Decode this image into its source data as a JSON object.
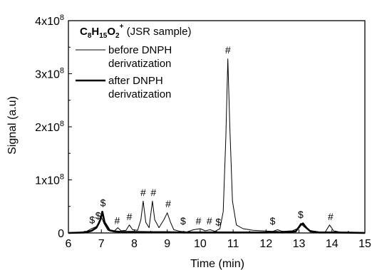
{
  "chart_data": {
    "type": "line",
    "xlabel": "Time (min)",
    "ylabel": "Signal (a.u)",
    "xlim": [
      6,
      15
    ],
    "ylim": [
      0,
      400000000
    ],
    "x_ticks": [
      "6",
      "7",
      "8",
      "9",
      "10",
      "11",
      "12",
      "13",
      "14",
      "15"
    ],
    "y_ticks": [
      {
        "value": 0,
        "mantissa": "0",
        "exponent": ""
      },
      {
        "value": 100000000,
        "mantissa": "1x10",
        "exponent": "8"
      },
      {
        "value": 200000000,
        "mantissa": "2x10",
        "exponent": "8"
      },
      {
        "value": 300000000,
        "mantissa": "3x10",
        "exponent": "8"
      },
      {
        "value": 400000000,
        "mantissa": "4x10",
        "exponent": "8"
      }
    ],
    "legend": {
      "placement": "top-left",
      "title": {
        "formula": [
          "C",
          "8",
          "H",
          "15",
          "O",
          "2",
          "+"
        ],
        "note": " (JSR sample)"
      },
      "entries": [
        {
          "line1": "before DNPH",
          "line2": "derivatization"
        },
        {
          "line1": "after DNPH",
          "line2": "derivatization"
        }
      ]
    },
    "series": [
      {
        "name": "before DNPH derivatization",
        "points": [
          [
            6.0,
            0
          ],
          [
            6.3,
            1000000
          ],
          [
            6.55,
            3000000
          ],
          [
            6.7,
            8000000
          ],
          [
            6.85,
            12000000
          ],
          [
            6.95,
            22000000
          ],
          [
            7.0,
            30000000
          ],
          [
            7.08,
            18000000
          ],
          [
            7.2,
            5000000
          ],
          [
            7.4,
            4000000
          ],
          [
            7.5,
            10000000
          ],
          [
            7.6,
            4000000
          ],
          [
            7.75,
            5000000
          ],
          [
            7.85,
            15000000
          ],
          [
            7.95,
            6000000
          ],
          [
            8.1,
            5000000
          ],
          [
            8.2,
            25000000
          ],
          [
            8.27,
            60000000
          ],
          [
            8.35,
            20000000
          ],
          [
            8.45,
            10000000
          ],
          [
            8.55,
            60000000
          ],
          [
            8.62,
            25000000
          ],
          [
            8.75,
            10000000
          ],
          [
            8.9,
            25000000
          ],
          [
            9.0,
            38000000
          ],
          [
            9.1,
            20000000
          ],
          [
            9.2,
            6000000
          ],
          [
            9.4,
            3000000
          ],
          [
            9.6,
            2000000
          ],
          [
            9.8,
            6000000
          ],
          [
            10.0,
            8000000
          ],
          [
            10.15,
            4000000
          ],
          [
            10.3,
            6000000
          ],
          [
            10.45,
            3000000
          ],
          [
            10.6,
            8000000
          ],
          [
            10.7,
            40000000
          ],
          [
            10.78,
            180000000
          ],
          [
            10.84,
            328000000
          ],
          [
            10.9,
            200000000
          ],
          [
            10.98,
            60000000
          ],
          [
            11.1,
            15000000
          ],
          [
            11.3,
            8000000
          ],
          [
            11.6,
            5000000
          ],
          [
            11.9,
            4000000
          ],
          [
            12.2,
            3000000
          ],
          [
            12.35,
            6000000
          ],
          [
            12.5,
            3000000
          ],
          [
            12.8,
            4000000
          ],
          [
            12.95,
            8000000
          ],
          [
            13.05,
            18000000
          ],
          [
            13.15,
            12000000
          ],
          [
            13.3,
            5000000
          ],
          [
            13.6,
            2000000
          ],
          [
            13.8,
            2000000
          ],
          [
            13.93,
            15000000
          ],
          [
            14.05,
            4000000
          ],
          [
            14.3,
            1000000
          ],
          [
            14.6,
            500000
          ],
          [
            15.0,
            0
          ]
        ]
      },
      {
        "name": "after DNPH derivatization",
        "points": [
          [
            6.0,
            0
          ],
          [
            6.5,
            1000000
          ],
          [
            6.7,
            4000000
          ],
          [
            6.85,
            10000000
          ],
          [
            6.92,
            18000000
          ],
          [
            6.97,
            25000000
          ],
          [
            7.03,
            40000000
          ],
          [
            7.1,
            20000000
          ],
          [
            7.25,
            5000000
          ],
          [
            7.4,
            3000000
          ],
          [
            7.6,
            2000000
          ],
          [
            8.0,
            2000000
          ],
          [
            8.5,
            1500000
          ],
          [
            9.0,
            1500000
          ],
          [
            9.5,
            1000000
          ],
          [
            10.0,
            1000000
          ],
          [
            10.5,
            1000000
          ],
          [
            11.0,
            1000000
          ],
          [
            11.5,
            1000000
          ],
          [
            12.0,
            1000000
          ],
          [
            12.3,
            2000000
          ],
          [
            12.5,
            1000000
          ],
          [
            12.9,
            3000000
          ],
          [
            13.05,
            15000000
          ],
          [
            13.12,
            18000000
          ],
          [
            13.22,
            10000000
          ],
          [
            13.35,
            3000000
          ],
          [
            13.6,
            1000000
          ],
          [
            14.0,
            1000000
          ],
          [
            14.5,
            500000
          ],
          [
            15.0,
            0
          ]
        ]
      }
    ],
    "annotations": [
      {
        "text": "$",
        "x": 6.72,
        "y": 14000000
      },
      {
        "text": "$",
        "x": 6.9,
        "y": 22000000
      },
      {
        "text": "$",
        "x": 7.05,
        "y": 46000000
      },
      {
        "text": "#",
        "x": 7.48,
        "y": 13000000
      },
      {
        "text": "#",
        "x": 7.85,
        "y": 20000000
      },
      {
        "text": "#",
        "x": 8.27,
        "y": 66000000
      },
      {
        "text": "#",
        "x": 8.58,
        "y": 66000000
      },
      {
        "text": "#",
        "x": 9.03,
        "y": 44000000
      },
      {
        "text": "$",
        "x": 9.48,
        "y": 12000000
      },
      {
        "text": "#",
        "x": 9.95,
        "y": 12000000
      },
      {
        "text": "#",
        "x": 10.28,
        "y": 12000000
      },
      {
        "text": "$",
        "x": 10.55,
        "y": 10000000
      },
      {
        "text": "#",
        "x": 10.84,
        "y": 334000000
      },
      {
        "text": "$",
        "x": 12.2,
        "y": 12000000
      },
      {
        "text": "$",
        "x": 13.05,
        "y": 24000000
      },
      {
        "text": "#",
        "x": 13.96,
        "y": 20000000
      }
    ]
  }
}
